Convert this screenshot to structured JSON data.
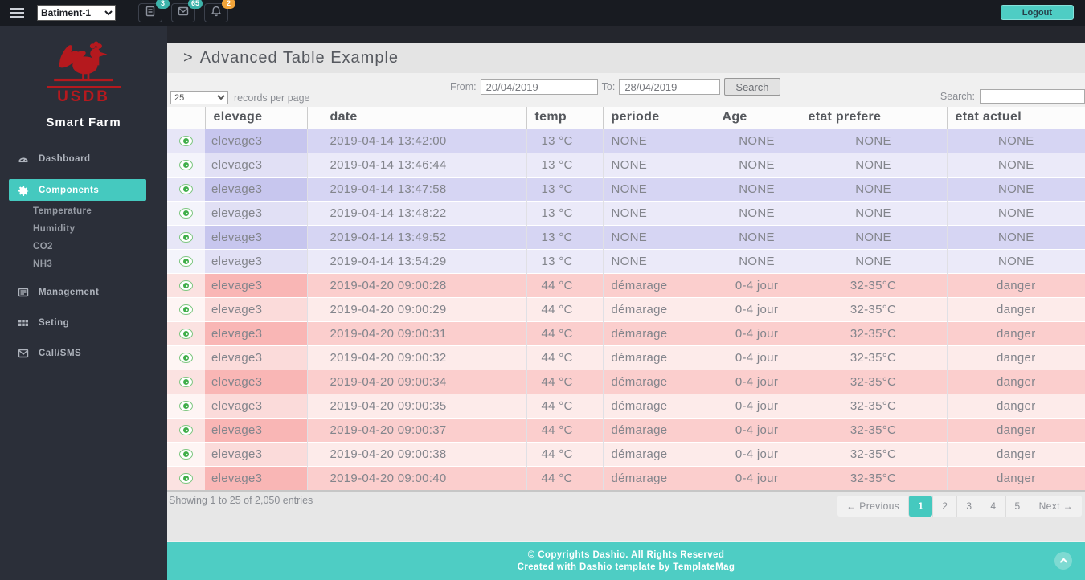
{
  "accent_color": "#4ecdc4",
  "logo_color": "#b5191e",
  "topbar": {
    "building_select": "Batiment-1",
    "icons": [
      {
        "name": "file-icon",
        "badge": "3",
        "badge_color": "#3db3aa"
      },
      {
        "name": "mail-icon",
        "badge": "65",
        "badge_color": "#3db3aa"
      },
      {
        "name": "bell-icon",
        "badge": "2",
        "badge_color": "#f2a53a"
      }
    ],
    "logout_label": "Logout"
  },
  "sidebar": {
    "logo_text": "USDB",
    "brand": "Smart Farm",
    "items": [
      {
        "type": "item",
        "label": "Dashboard",
        "icon": "dashboard-icon",
        "active": false
      },
      {
        "type": "item",
        "label": "Components",
        "icon": "components-icon",
        "active": true
      },
      {
        "type": "sub",
        "label": "Temperature"
      },
      {
        "type": "sub",
        "label": "Humidity"
      },
      {
        "type": "sub",
        "label": "CO2"
      },
      {
        "type": "sub",
        "label": "NH3"
      },
      {
        "type": "item",
        "label": "Management",
        "icon": "management-icon",
        "active": false
      },
      {
        "type": "item",
        "label": "Seting",
        "icon": "settings-icon",
        "active": false
      },
      {
        "type": "item",
        "label": "Call/SMS",
        "icon": "envelope-icon",
        "active": false
      }
    ]
  },
  "page": {
    "title_prefix": ">",
    "title": "Advanced Table Example"
  },
  "controls": {
    "records_value": "25",
    "records_label": "records per page",
    "from_label": "From:",
    "from_value": "20/04/2019",
    "to_label": "To:",
    "to_value": "28/04/2019",
    "search_button": "Search",
    "search_label": "Search:",
    "search_value": ""
  },
  "table": {
    "columns": [
      "",
      "elevage",
      "date",
      "temp",
      "periode",
      "Age",
      "etat prefere",
      "etat actuel"
    ],
    "row_colors": {
      "purple_dark": "#d6d5f3",
      "purple_light": "#ebeaf9",
      "pink_dark": "#fbcecd",
      "pink_light": "#fdebea",
      "expand_icon_green": "#3fae49"
    },
    "rows": [
      {
        "tone": "purple",
        "cells": [
          "elevage3",
          "2019-04-14 13:42:00",
          "13 °C",
          "NONE",
          "NONE",
          "NONE",
          "NONE"
        ]
      },
      {
        "tone": "purple",
        "cells": [
          "elevage3",
          "2019-04-14 13:46:44",
          "13 °C",
          "NONE",
          "NONE",
          "NONE",
          "NONE"
        ]
      },
      {
        "tone": "purple",
        "cells": [
          "elevage3",
          "2019-04-14 13:47:58",
          "13 °C",
          "NONE",
          "NONE",
          "NONE",
          "NONE"
        ]
      },
      {
        "tone": "purple",
        "cells": [
          "elevage3",
          "2019-04-14 13:48:22",
          "13 °C",
          "NONE",
          "NONE",
          "NONE",
          "NONE"
        ]
      },
      {
        "tone": "purple",
        "cells": [
          "elevage3",
          "2019-04-14 13:49:52",
          "13 °C",
          "NONE",
          "NONE",
          "NONE",
          "NONE"
        ]
      },
      {
        "tone": "purple",
        "cells": [
          "elevage3",
          "2019-04-14 13:54:29",
          "13 °C",
          "NONE",
          "NONE",
          "NONE",
          "NONE"
        ]
      },
      {
        "tone": "pink",
        "cells": [
          "elevage3",
          "2019-04-20 09:00:28",
          "44 °C",
          "démarage",
          "0-4 jour",
          "32-35°C",
          "danger"
        ]
      },
      {
        "tone": "pink",
        "cells": [
          "elevage3",
          "2019-04-20 09:00:29",
          "44 °C",
          "démarage",
          "0-4 jour",
          "32-35°C",
          "danger"
        ]
      },
      {
        "tone": "pink",
        "cells": [
          "elevage3",
          "2019-04-20 09:00:31",
          "44 °C",
          "démarage",
          "0-4 jour",
          "32-35°C",
          "danger"
        ]
      },
      {
        "tone": "pink",
        "cells": [
          "elevage3",
          "2019-04-20 09:00:32",
          "44 °C",
          "démarage",
          "0-4 jour",
          "32-35°C",
          "danger"
        ]
      },
      {
        "tone": "pink",
        "cells": [
          "elevage3",
          "2019-04-20 09:00:34",
          "44 °C",
          "démarage",
          "0-4 jour",
          "32-35°C",
          "danger"
        ]
      },
      {
        "tone": "pink",
        "cells": [
          "elevage3",
          "2019-04-20 09:00:35",
          "44 °C",
          "démarage",
          "0-4 jour",
          "32-35°C",
          "danger"
        ]
      },
      {
        "tone": "pink",
        "cells": [
          "elevage3",
          "2019-04-20 09:00:37",
          "44 °C",
          "démarage",
          "0-4 jour",
          "32-35°C",
          "danger"
        ]
      },
      {
        "tone": "pink",
        "cells": [
          "elevage3",
          "2019-04-20 09:00:38",
          "44 °C",
          "démarage",
          "0-4 jour",
          "32-35°C",
          "danger"
        ]
      },
      {
        "tone": "pink",
        "cells": [
          "elevage3",
          "2019-04-20 09:00:40",
          "44 °C",
          "démarage",
          "0-4 jour",
          "32-35°C",
          "danger"
        ]
      }
    ]
  },
  "table_footer": {
    "showing": "Showing 1 to 25 of 2,050 entries",
    "pagination": {
      "prev": "← Previous",
      "pages": [
        "1",
        "2",
        "3",
        "4",
        "5"
      ],
      "active": "1",
      "next": "Next →"
    }
  },
  "footer": {
    "copyright_prefix": "© Copyrights ",
    "brand": "Dashio",
    "copyright_suffix": ". All Rights Reserved",
    "line2": "Created with Dashio template by TemplateMag"
  }
}
